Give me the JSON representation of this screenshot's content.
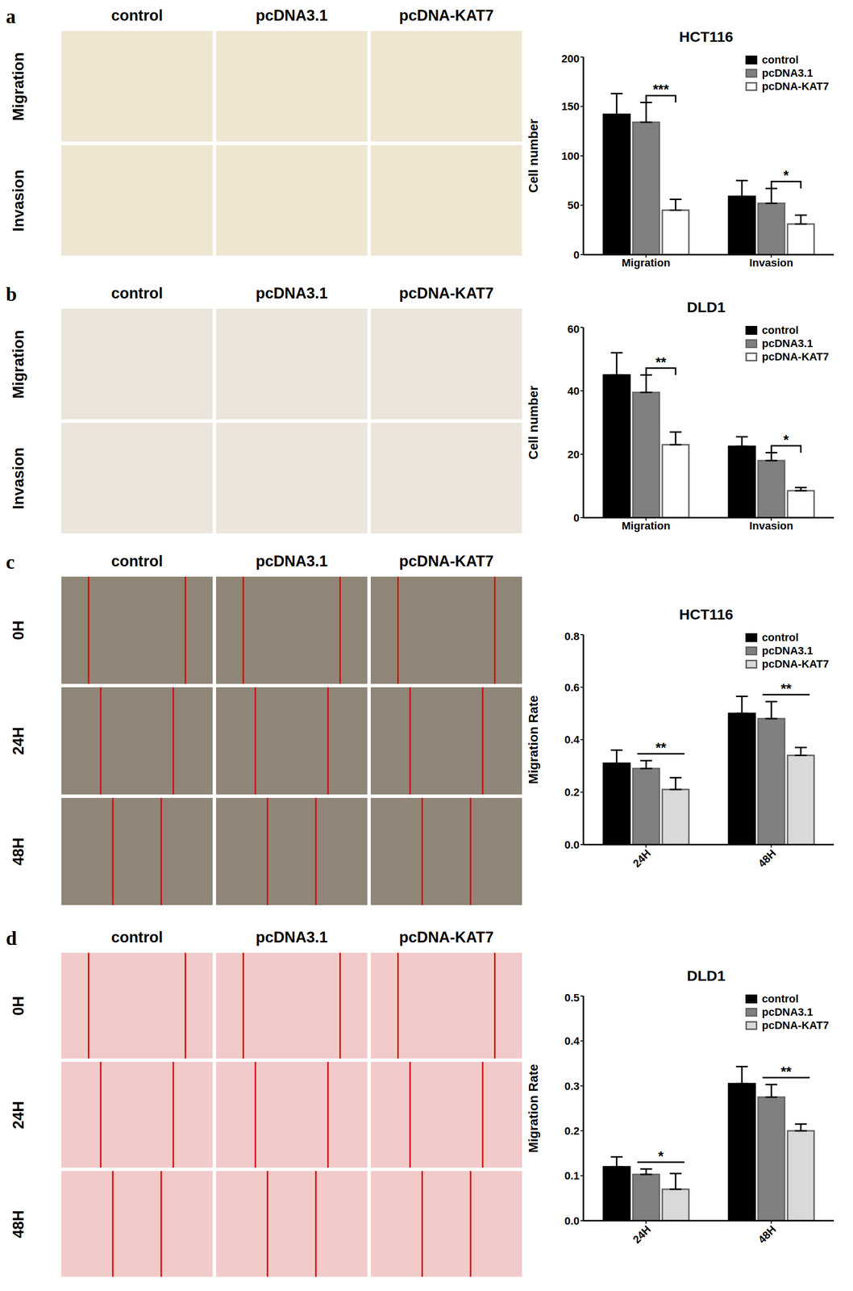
{
  "panels": [
    {
      "letter": "a",
      "columns": [
        "control",
        "pcDNA3.1",
        "pcDNA-KAT7"
      ],
      "rows": [
        "Migration",
        "Invasion"
      ]
    },
    {
      "letter": "b",
      "columns": [
        "control",
        "pcDNA3.1",
        "pcDNA-KAT7"
      ],
      "rows": [
        "Migration",
        "Invasion"
      ]
    },
    {
      "letter": "c",
      "columns": [
        "control",
        "pcDNA3.1",
        "pcDNA-KAT7"
      ],
      "rows": [
        "0H",
        "24H",
        "48H"
      ]
    },
    {
      "letter": "d",
      "columns": [
        "control",
        "pcDNA3.1",
        "pcDNA-KAT7"
      ],
      "rows": [
        "0H",
        "24H",
        "48H"
      ]
    }
  ],
  "chart_data": [
    {
      "type": "bar",
      "title": "HCT116",
      "y_label": "Cell number",
      "categories": [
        "Migration",
        "Invasion"
      ],
      "ylim": [
        0,
        200
      ],
      "yticks": [
        0,
        50,
        100,
        150,
        200
      ],
      "legend": "upper right",
      "series": [
        {
          "name": "control",
          "color": "#000000",
          "values": [
            142,
            59
          ],
          "errors": [
            21,
            16
          ]
        },
        {
          "name": "pcDNA3.1",
          "color": "#808080",
          "values": [
            134,
            52
          ],
          "errors": [
            20,
            15
          ]
        },
        {
          "name": "pcDNA-KAT7",
          "color": "#ffffff",
          "values": [
            45,
            31
          ],
          "errors": [
            11,
            9
          ]
        }
      ],
      "significance": [
        {
          "category": "Migration",
          "between": [
            "pcDNA3.1",
            "pcDNA-KAT7"
          ],
          "label": "***"
        },
        {
          "category": "Invasion",
          "between": [
            "pcDNA3.1",
            "pcDNA-KAT7"
          ],
          "label": "*"
        }
      ]
    },
    {
      "type": "bar",
      "title": "DLD1",
      "y_label": "Cell number",
      "categories": [
        "Migration",
        "Invasion"
      ],
      "ylim": [
        0,
        60
      ],
      "yticks": [
        0,
        20,
        40,
        60
      ],
      "legend": "upper right",
      "series": [
        {
          "name": "control",
          "color": "#000000",
          "values": [
            45,
            22.5
          ],
          "errors": [
            7,
            3
          ]
        },
        {
          "name": "pcDNA3.1",
          "color": "#808080",
          "values": [
            39.5,
            18
          ],
          "errors": [
            5.5,
            2.5
          ]
        },
        {
          "name": "pcDNA-KAT7",
          "color": "#ffffff",
          "values": [
            23,
            8.5
          ],
          "errors": [
            4,
            1
          ]
        }
      ],
      "significance": [
        {
          "category": "Migration",
          "between": [
            "pcDNA3.1",
            "pcDNA-KAT7"
          ],
          "label": "**"
        },
        {
          "category": "Invasion",
          "between": [
            "pcDNA3.1",
            "pcDNA-KAT7"
          ],
          "label": "*"
        }
      ]
    },
    {
      "type": "bar",
      "title": "HCT116",
      "y_label": "Migration Rate",
      "categories": [
        "24H",
        "48H"
      ],
      "ylim": [
        0,
        0.8
      ],
      "yticks": [
        {
          "value": 0,
          "label": "0.0"
        },
        0.2,
        0.4,
        0.6,
        0.8
      ],
      "legend": "upper right",
      "series": [
        {
          "name": "control",
          "color": "#000000",
          "values": [
            0.31,
            0.5
          ],
          "errors": [
            0.05,
            0.065
          ]
        },
        {
          "name": "pcDNA3.1",
          "color": "#808080",
          "values": [
            0.29,
            0.48
          ],
          "errors": [
            0.03,
            0.065
          ]
        },
        {
          "name": "pcDNA-KAT7",
          "color": "#d9d9d9",
          "values": [
            0.21,
            0.34
          ],
          "errors": [
            0.045,
            0.03
          ]
        }
      ],
      "significance": [
        {
          "category": "24H",
          "between": [
            "pcDNA3.1",
            "pcDNA-KAT7"
          ],
          "label": "**"
        },
        {
          "category": "48H",
          "between": [
            "pcDNA3.1",
            "pcDNA-KAT7"
          ],
          "label": "**"
        }
      ]
    },
    {
      "type": "bar",
      "title": "DLD1",
      "y_label": "Migration Rate",
      "categories": [
        "24H",
        "48H"
      ],
      "ylim": [
        0,
        0.5
      ],
      "yticks": [
        {
          "value": 0,
          "label": "0.0"
        },
        0.1,
        0.2,
        0.3,
        0.4,
        0.5
      ],
      "legend": "upper right",
      "series": [
        {
          "name": "control",
          "color": "#000000",
          "values": [
            0.12,
            0.305
          ],
          "errors": [
            0.022,
            0.038
          ]
        },
        {
          "name": "pcDNA3.1",
          "color": "#808080",
          "values": [
            0.103,
            0.275
          ],
          "errors": [
            0.012,
            0.028
          ]
        },
        {
          "name": "pcDNA-KAT7",
          "color": "#d9d9d9",
          "values": [
            0.07,
            0.2
          ],
          "errors": [
            0.035,
            0.015
          ]
        }
      ],
      "significance": [
        {
          "category": "24H",
          "between": [
            "pcDNA3.1",
            "pcDNA-KAT7"
          ],
          "label": "*"
        },
        {
          "category": "48H",
          "between": [
            "pcDNA3.1",
            "pcDNA-KAT7"
          ],
          "label": "**"
        }
      ]
    }
  ]
}
